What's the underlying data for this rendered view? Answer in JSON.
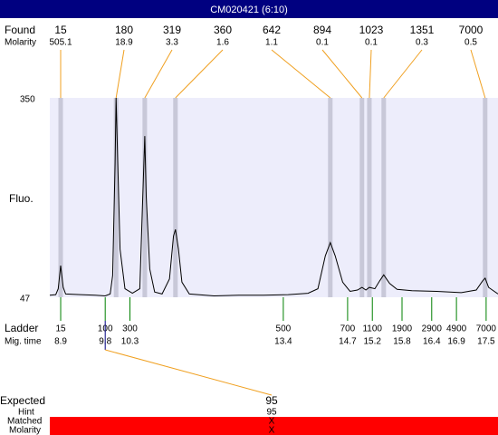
{
  "chart_data": {
    "type": "electropherogram",
    "title": "CM020421 (6:10)",
    "y_label": "Fluo.",
    "ylim": [
      47,
      350
    ],
    "yticks": [
      47,
      350
    ],
    "xlim": [
      8.68,
      17.74
    ],
    "found_label": "Found",
    "molarity_label": "Molarity",
    "peaks": {
      "x": [
        8.9,
        10.02,
        10.6,
        11.22,
        14.35,
        14.99,
        15.14,
        15.43,
        17.48
      ],
      "sizes": [
        15,
        180,
        319,
        360,
        642,
        894,
        1023,
        1351,
        7000
      ],
      "molarity": [
        505.1,
        18.9,
        3.3,
        1.6,
        1.1,
        0.1,
        0.1,
        0.3,
        0.5
      ]
    },
    "trace": {
      "x": [
        8.68,
        8.8,
        8.85,
        8.9,
        8.95,
        9.0,
        9.3,
        9.6,
        9.8,
        9.9,
        9.95,
        10.0,
        10.02,
        10.05,
        10.1,
        10.2,
        10.35,
        10.5,
        10.55,
        10.6,
        10.63,
        10.7,
        10.8,
        10.95,
        11.1,
        11.18,
        11.22,
        11.28,
        11.35,
        11.5,
        12.0,
        12.5,
        13.0,
        13.5,
        13.9,
        14.1,
        14.25,
        14.35,
        14.45,
        14.6,
        14.75,
        14.9,
        14.99,
        15.07,
        15.14,
        15.25,
        15.35,
        15.43,
        15.55,
        15.7,
        16.0,
        16.5,
        17.0,
        17.3,
        17.43,
        17.48,
        17.55,
        17.74
      ],
      "values": [
        50,
        51,
        60,
        95,
        62,
        52,
        51,
        50,
        49,
        52,
        80,
        250,
        350,
        260,
        120,
        60,
        53,
        60,
        180,
        292,
        200,
        90,
        55,
        52,
        75,
        140,
        150,
        120,
        70,
        52,
        49,
        50,
        50,
        51,
        53,
        60,
        110,
        130,
        110,
        70,
        56,
        58,
        62,
        58,
        62,
        60,
        72,
        81,
        68,
        59,
        57,
        56,
        54,
        58,
        72,
        76,
        62,
        52
      ]
    },
    "ladder_label": "Ladder",
    "mig_time_label": "Mig. time",
    "ladder": {
      "sizes": [
        15,
        100,
        300,
        500,
        700,
        1100,
        1900,
        2900,
        4900,
        7000
      ],
      "x": [
        8.9,
        9.8,
        10.3,
        13.4,
        14.7,
        15.2,
        15.8,
        16.4,
        16.9,
        17.5
      ]
    },
    "expected": {
      "label": "Expected",
      "value": 95,
      "hint_label": "Hint",
      "hint": 95,
      "matched_label": "Matched",
      "matched": "X",
      "molarity_label": "Molarity",
      "molarity": "X"
    }
  }
}
